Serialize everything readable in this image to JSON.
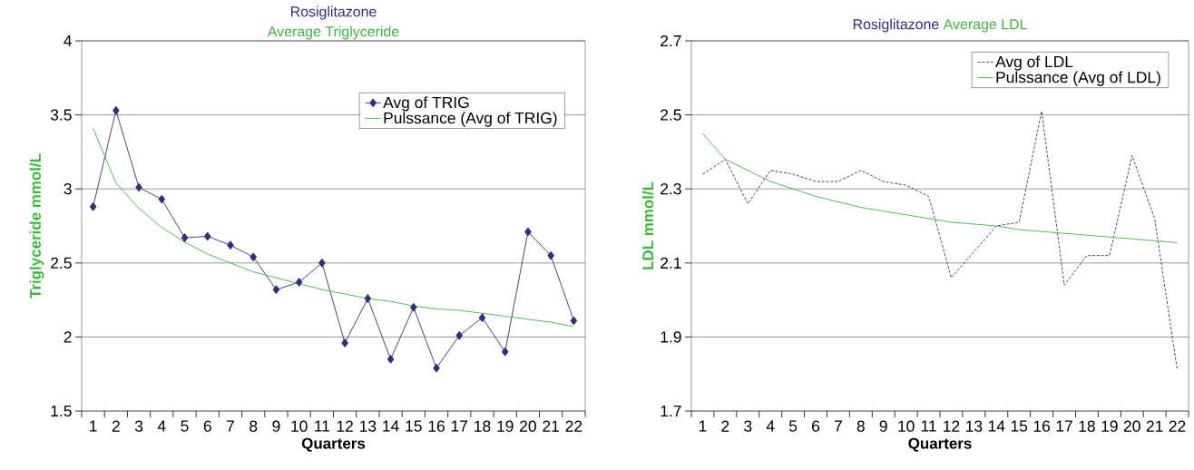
{
  "chart_data": [
    {
      "type": "line",
      "title": "Rosiglitazone",
      "subtitle": "Average Triglyceride",
      "xlabel": "Quarters",
      "ylabel": "Triglyceride mmol/L",
      "categories": [
        "1",
        "2",
        "3",
        "4",
        "5",
        "6",
        "7",
        "8",
        "9",
        "10",
        "11",
        "12",
        "13",
        "14",
        "15",
        "16",
        "17",
        "18",
        "19",
        "20",
        "21",
        "22"
      ],
      "series": [
        {
          "name": "Avg of TRIG",
          "color": "#2e2e7e",
          "marker": "diamond",
          "line_style": "solid",
          "values": [
            2.88,
            3.53,
            3.01,
            2.93,
            2.67,
            2.68,
            2.62,
            2.54,
            2.32,
            2.37,
            2.5,
            1.96,
            2.26,
            1.85,
            2.2,
            1.79,
            2.01,
            2.13,
            1.9,
            2.71,
            2.55,
            2.11
          ]
        },
        {
          "name": "Pulssance (Avg of TRIG)",
          "color": "#3cb83c",
          "marker": "none",
          "line_style": "solid",
          "values": [
            3.41,
            3.04,
            2.87,
            2.74,
            2.64,
            2.56,
            2.5,
            2.44,
            2.4,
            2.36,
            2.32,
            2.29,
            2.26,
            2.24,
            2.21,
            2.19,
            2.18,
            2.16,
            2.14,
            2.12,
            2.1,
            2.07
          ]
        }
      ],
      "ylim": [
        1.5,
        4
      ],
      "yticks": [
        1.5,
        2,
        2.5,
        3,
        3.5,
        4
      ],
      "grid": "y",
      "legend": "top right"
    },
    {
      "type": "line",
      "title": "Rosiglitazone",
      "subtitle": "Average LDL",
      "xlabel": "Quarters",
      "ylabel": "LDL mmol/L",
      "categories": [
        "1",
        "2",
        "3",
        "4",
        "5",
        "6",
        "7",
        "8",
        "9",
        "10",
        "11",
        "12",
        "13",
        "14",
        "15",
        "16",
        "17",
        "18",
        "19",
        "20",
        "21",
        "22"
      ],
      "series": [
        {
          "name": "Avg of LDL",
          "color": "#2e2e7e",
          "marker": "none",
          "line_style": "dashed",
          "values": [
            2.34,
            2.38,
            2.26,
            2.35,
            2.34,
            2.32,
            2.32,
            2.35,
            2.32,
            2.31,
            2.28,
            2.06,
            2.13,
            2.2,
            2.21,
            2.51,
            2.04,
            2.12,
            2.12,
            2.39,
            2.22,
            1.81
          ]
        },
        {
          "name": "Pulssance (Avg of LDL)",
          "color": "#3cb83c",
          "marker": "none",
          "line_style": "solid",
          "values": [
            2.45,
            2.38,
            2.35,
            2.32,
            2.3,
            2.28,
            2.265,
            2.25,
            2.24,
            2.23,
            2.22,
            2.21,
            2.205,
            2.2,
            2.19,
            2.185,
            2.18,
            2.175,
            2.17,
            2.165,
            2.16,
            2.155
          ]
        }
      ],
      "ylim": [
        1.7,
        2.7
      ],
      "yticks": [
        1.7,
        1.9,
        2.1,
        2.3,
        2.5,
        2.7
      ],
      "grid": "y",
      "legend": "top right"
    }
  ]
}
